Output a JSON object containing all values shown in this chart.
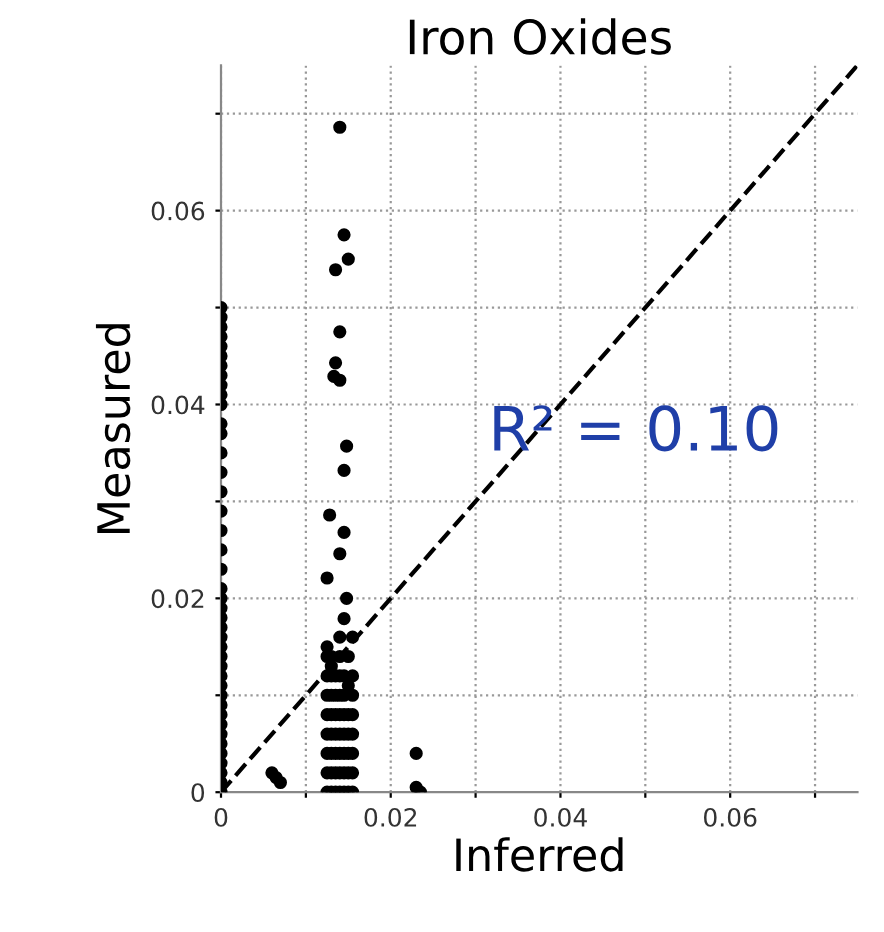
{
  "chart_data": {
    "type": "scatter",
    "title": "Iron Oxides",
    "xlabel": "Inferred",
    "ylabel": "Measured",
    "annotations": [
      "R² = 0.10"
    ],
    "xlim": [
      0,
      0.075
    ],
    "ylim": [
      0,
      0.075
    ],
    "xticks": [
      0,
      {
        "value": 0.01,
        "label": null
      },
      0.02,
      {
        "value": 0.03,
        "label": null
      },
      0.04,
      {
        "value": 0.05,
        "label": null
      },
      0.06,
      {
        "value": 0.07,
        "label": null
      }
    ],
    "yticks": [
      0,
      {
        "value": 0.01,
        "label": null
      },
      0.02,
      {
        "value": 0.03,
        "label": null
      },
      0.04,
      {
        "value": 0.05,
        "label": null
      },
      0.06,
      {
        "value": 0.07,
        "label": null
      }
    ],
    "grid": true,
    "legend": false,
    "marker": "circle",
    "series": [
      {
        "color": "#000000",
        "x": [
          0,
          0,
          0,
          0,
          0,
          0,
          0,
          0,
          0,
          0,
          0,
          0,
          0,
          0,
          0,
          0,
          0,
          0,
          0,
          0,
          0,
          0,
          0,
          0,
          0,
          0,
          0,
          0,
          0,
          0,
          0,
          0,
          0,
          0,
          0,
          0,
          0,
          0,
          0,
          0,
          0,
          0,
          0.006,
          0.0065,
          0.007,
          0.023,
          0.023,
          0.0235,
          0.014,
          0.0145,
          0.015,
          0.0135,
          0.014,
          0.0135,
          0.0133,
          0.014,
          0.0148,
          0.0145,
          0.0128,
          0.0145,
          0.014,
          0.0125,
          0.0148,
          0.0145,
          0.0125,
          0.013,
          0.0135,
          0.014,
          0.0145,
          0.015,
          0.0155,
          0.0125,
          0.013,
          0.0135,
          0.014,
          0.0145,
          0.015,
          0.0155,
          0.0125,
          0.013,
          0.0135,
          0.014,
          0.0145,
          0.015,
          0.0155,
          0.0125,
          0.013,
          0.0135,
          0.014,
          0.0145,
          0.015,
          0.0155,
          0.0125,
          0.013,
          0.0135,
          0.014,
          0.0145,
          0.015,
          0.0155,
          0.0125,
          0.013,
          0.0135,
          0.014,
          0.0145,
          0.0155,
          0.0125,
          0.013,
          0.0135,
          0.014,
          0.0145,
          0.0155,
          0.0125,
          0.013,
          0.014,
          0.015,
          0.0125,
          0.014,
          0.0155,
          0.013,
          0.015
        ],
        "values": [
          0.05,
          0.049,
          0.048,
          0.047,
          0.046,
          0.045,
          0.044,
          0.043,
          0.042,
          0.041,
          0.04,
          0.038,
          0.037,
          0.035,
          0.033,
          0.031,
          0.029,
          0.027,
          0.025,
          0.023,
          0.021,
          0.02,
          0.019,
          0.018,
          0.017,
          0.016,
          0.015,
          0.014,
          0.013,
          0.012,
          0.011,
          0.01,
          0.009,
          0.008,
          0.007,
          0.006,
          0.005,
          0.004,
          0.003,
          0.002,
          0.001,
          0,
          0.002,
          0.0015,
          0.001,
          0.004,
          0.0005,
          0,
          0.0686,
          0.0575,
          0.055,
          0.0539,
          0.0475,
          0.0443,
          0.0429,
          0.0425,
          0.0357,
          0.0332,
          0.0286,
          0.0268,
          0.0246,
          0.0221,
          0.02,
          0.0179,
          0,
          0,
          0,
          0,
          0,
          0,
          0,
          0.002,
          0.002,
          0.002,
          0.002,
          0.002,
          0.002,
          0.002,
          0.004,
          0.004,
          0.004,
          0.004,
          0.004,
          0.004,
          0.004,
          0.006,
          0.006,
          0.006,
          0.006,
          0.006,
          0.006,
          0.006,
          0.008,
          0.008,
          0.008,
          0.008,
          0.008,
          0.008,
          0.008,
          0.01,
          0.01,
          0.01,
          0.01,
          0.01,
          0.01,
          0.012,
          0.012,
          0.012,
          0.012,
          0.012,
          0.012,
          0.014,
          0.014,
          0.014,
          0.014,
          0.015,
          0.016,
          0.016,
          0.013,
          0.011
        ]
      },
      {
        "type": "line",
        "line_style": "dashed",
        "marker": "none",
        "color": "#000000",
        "x": [
          0,
          0.075
        ],
        "values": [
          0,
          0.075
        ]
      }
    ]
  }
}
